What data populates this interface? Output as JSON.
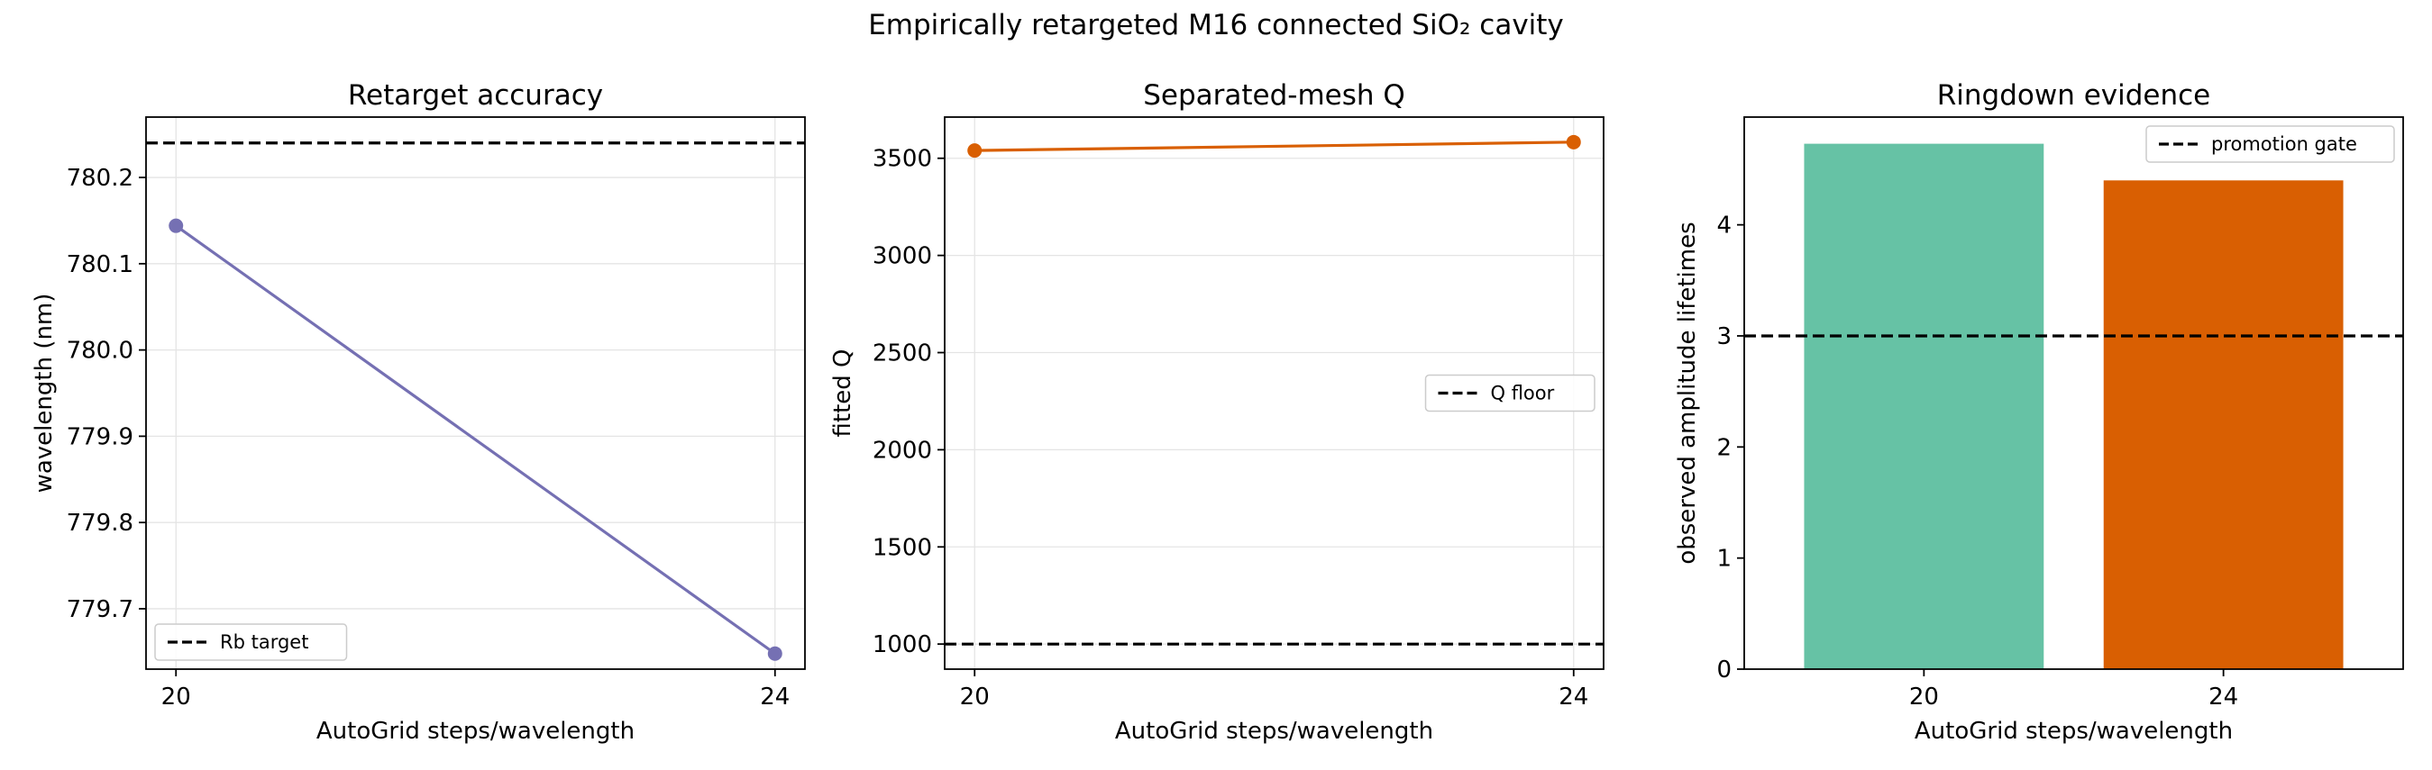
{
  "figure": {
    "suptitle": "Empirically retargeted M16 connected SiO₂ cavity"
  },
  "chart_data": [
    {
      "type": "line",
      "title": "Retarget accuracy",
      "xlabel": "AutoGrid steps/wavelength",
      "ylabel": "wavelength (nm)",
      "x": [
        20,
        24
      ],
      "series": [
        {
          "values": [
            780.144,
            779.648
          ],
          "color": "#7570b3"
        }
      ],
      "hline": {
        "name": "Rb target",
        "value": 780.24,
        "style": "dashed",
        "color": "#000000"
      },
      "xticks": [
        "20",
        "24"
      ],
      "yticks": [
        779.7,
        779.8,
        779.9,
        780.0,
        780.1,
        780.2
      ],
      "ytick_labels": [
        "779.7",
        "779.8",
        "779.9",
        "780.0",
        "780.1",
        "780.2"
      ],
      "xlim": [
        19.8,
        24.2
      ],
      "ylim": [
        779.63,
        780.27
      ],
      "grid": true,
      "legend": "lower left"
    },
    {
      "type": "line",
      "title": "Separated-mesh Q",
      "xlabel": "AutoGrid steps/wavelength",
      "ylabel": "fitted Q",
      "x": [
        20,
        24
      ],
      "series": [
        {
          "values": [
            3540,
            3583
          ],
          "color": "#d95f02"
        }
      ],
      "hline": {
        "name": "Q floor",
        "value": 1000,
        "style": "dashed",
        "color": "#000000"
      },
      "xticks": [
        "20",
        "24"
      ],
      "yticks": [
        1000,
        1500,
        2000,
        2500,
        3000,
        3500
      ],
      "ytick_labels": [
        "1000",
        "1500",
        "2000",
        "2500",
        "3000",
        "3500"
      ],
      "xlim": [
        19.8,
        24.2
      ],
      "ylim": [
        871,
        3712
      ],
      "grid": true,
      "legend": "center right"
    },
    {
      "type": "bar",
      "title": "Ringdown evidence",
      "xlabel": "AutoGrid steps/wavelength",
      "ylabel": "observed amplitude lifetimes",
      "categories": [
        "20",
        "24"
      ],
      "values": [
        4.73,
        4.4
      ],
      "colors": [
        "#66c2a5",
        "#d95f02"
      ],
      "hline": {
        "name": "promotion gate",
        "value": 3,
        "style": "dashed",
        "color": "#000000"
      },
      "yticks": [
        0,
        1,
        2,
        3,
        4
      ],
      "ytick_labels": [
        "0",
        "1",
        "2",
        "3",
        "4"
      ],
      "ylim": [
        0,
        4.97
      ],
      "grid": false,
      "legend": "upper right"
    }
  ]
}
